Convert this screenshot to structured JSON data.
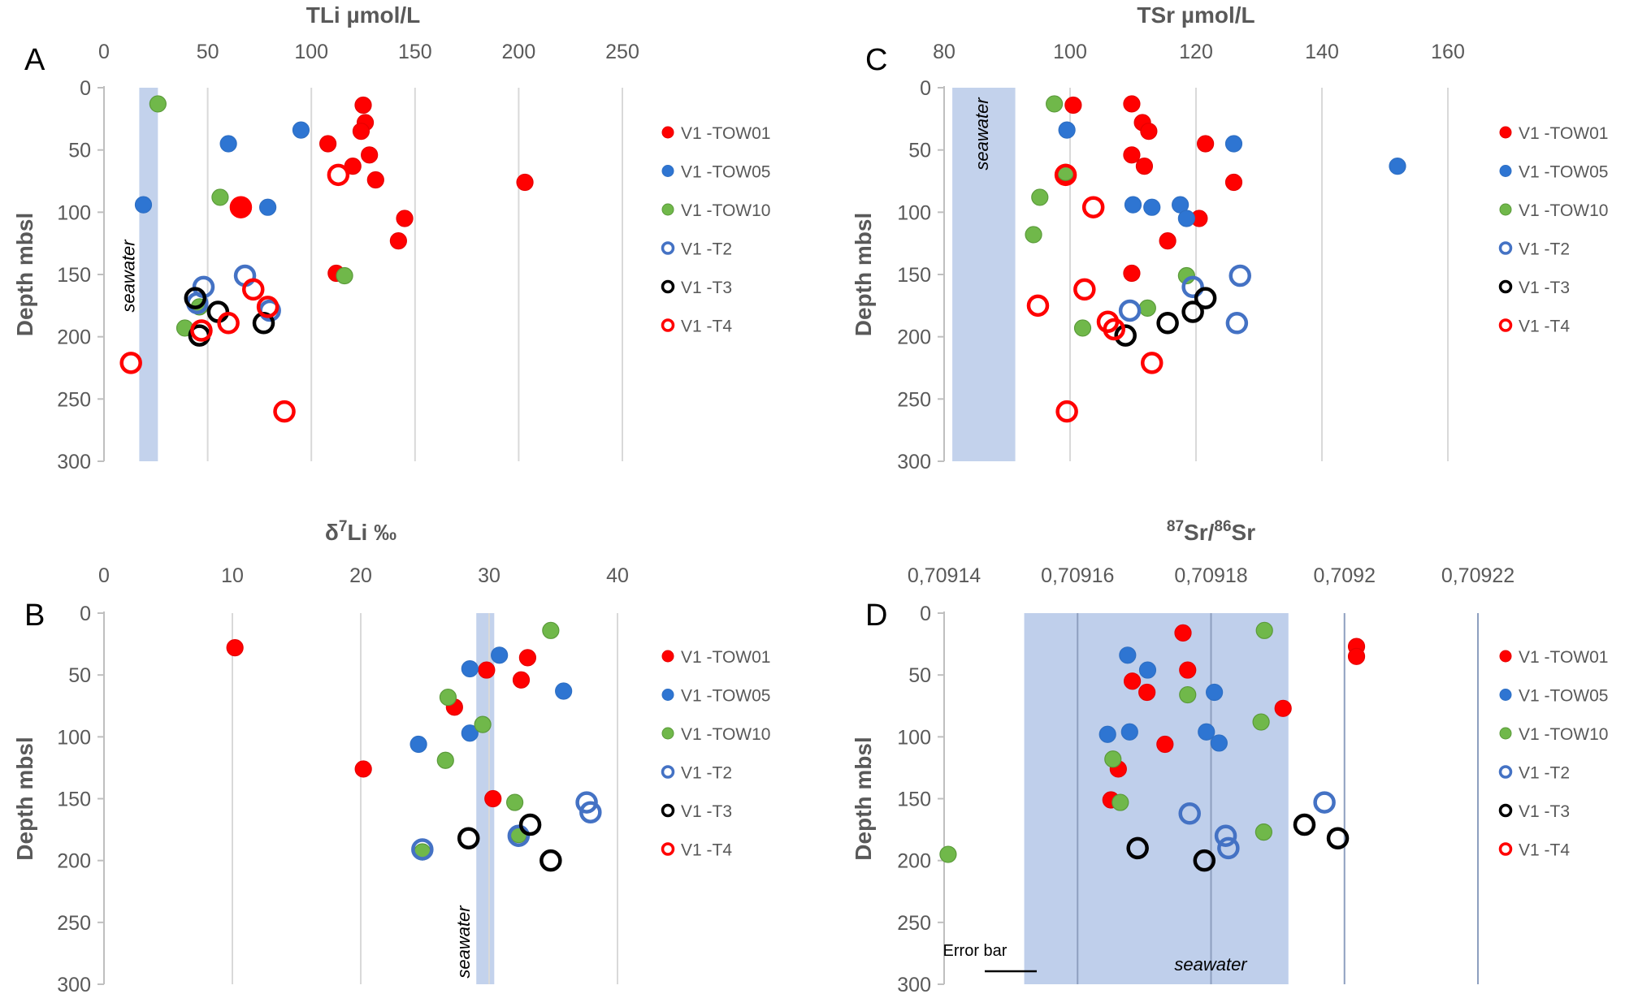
{
  "series_styles": [
    {
      "name": "V1 -TOW01",
      "fill": "#ff0000",
      "stroke": "#e60000",
      "hollow": false
    },
    {
      "name": "V1 -TOW05",
      "fill": "#2e75d2",
      "stroke": "#2e6fc4",
      "hollow": false
    },
    {
      "name": "V1 -TOW10",
      "fill": "#70b84a",
      "stroke": "#5a9a3a",
      "hollow": false
    },
    {
      "name": "V1 -T2",
      "fill": "none",
      "stroke": "#4472c4",
      "hollow": true
    },
    {
      "name": "V1 -T3",
      "fill": "none",
      "stroke": "#000000",
      "hollow": true
    },
    {
      "name": "V1 -T4",
      "fill": "none",
      "stroke": "#ff0000",
      "hollow": true
    }
  ],
  "chart_data": [
    {
      "panel": "A",
      "type": "scatter",
      "title": "TLi µmol/L",
      "xlabel": "TLi µmol/L",
      "ylabel": "Depth mbsl",
      "xlim": [
        0,
        250
      ],
      "ylim": [
        0,
        300
      ],
      "y_inverted": true,
      "xticks": [
        "0",
        "50",
        "100",
        "150",
        "200",
        "250"
      ],
      "yticks": [
        "0",
        "50",
        "100",
        "150",
        "200",
        "250",
        "300"
      ],
      "band": {
        "x": [
          17,
          26
        ],
        "label": "seawater"
      },
      "series": [
        {
          "name": "V1 -TOW01",
          "points": [
            [
              125,
              14
            ],
            [
              126,
              28
            ],
            [
              124,
              35
            ],
            [
              108,
              45
            ],
            [
              128,
              54
            ],
            [
              120,
              63
            ],
            [
              131,
              74
            ],
            [
              203,
              76
            ],
            [
              145,
              105
            ],
            [
              142,
              123
            ],
            [
              112,
              149
            ],
            [
              66,
              96
            ]
          ]
        },
        {
          "name": "V1 -TOW05",
          "points": [
            [
              95,
              34
            ],
            [
              60,
              45
            ],
            [
              19,
              94
            ],
            [
              79,
              96
            ]
          ]
        },
        {
          "name": "V1 -TOW10",
          "points": [
            [
              26,
              13
            ],
            [
              56,
              88
            ],
            [
              46,
              176
            ],
            [
              39,
              193
            ],
            [
              116,
              151
            ]
          ]
        },
        {
          "name": "V1 -T2",
          "points": [
            [
              48,
              160
            ],
            [
              68,
              151
            ],
            [
              80,
              179
            ],
            [
              45,
              173
            ]
          ]
        },
        {
          "name": "V1 -T3",
          "points": [
            [
              44,
              169
            ],
            [
              55,
              180
            ],
            [
              46,
              199
            ],
            [
              77,
              189
            ]
          ]
        },
        {
          "name": "V1 -T4",
          "points": [
            [
              113,
              70
            ],
            [
              66,
              96
            ],
            [
              72,
              162
            ],
            [
              79,
              176
            ],
            [
              60,
              189
            ],
            [
              47,
              195
            ],
            [
              13,
              221
            ],
            [
              87,
              260
            ]
          ]
        }
      ]
    },
    {
      "panel": "C",
      "type": "scatter",
      "title": "TSr µmol/L",
      "xlabel": "TSr µmol/L",
      "ylabel": "Depth mbsl",
      "xlim": [
        80,
        160
      ],
      "ylim": [
        0,
        300
      ],
      "y_inverted": true,
      "xticks": [
        "80",
        "100",
        "120",
        "140",
        "160"
      ],
      "yticks": [
        "0",
        "50",
        "100",
        "150",
        "200",
        "250",
        "300"
      ],
      "band": {
        "x": [
          81.3,
          91.3
        ],
        "label": "seawater"
      },
      "series": [
        {
          "name": "V1 -TOW01",
          "points": [
            [
              100.5,
              14
            ],
            [
              109.8,
              13
            ],
            [
              111.5,
              28
            ],
            [
              112.5,
              35
            ],
            [
              121.5,
              45
            ],
            [
              109.8,
              54
            ],
            [
              111.8,
              63
            ],
            [
              99.2,
              71
            ],
            [
              126,
              76
            ],
            [
              120.5,
              105
            ],
            [
              115.5,
              123
            ],
            [
              109.8,
              149
            ]
          ]
        },
        {
          "name": "V1 -TOW05",
          "points": [
            [
              99.5,
              34
            ],
            [
              126,
              45
            ],
            [
              152,
              63
            ],
            [
              110,
              94
            ],
            [
              113,
              96
            ],
            [
              117.5,
              94
            ],
            [
              118.5,
              105
            ]
          ]
        },
        {
          "name": "V1 -TOW10",
          "points": [
            [
              97.5,
              13
            ],
            [
              99.3,
              68
            ],
            [
              95.2,
              88
            ],
            [
              94.2,
              118
            ],
            [
              118.5,
              151
            ],
            [
              112.3,
              177
            ],
            [
              102,
              193
            ]
          ]
        },
        {
          "name": "V1 -T2",
          "points": [
            [
              119.5,
              160
            ],
            [
              109.5,
              179
            ],
            [
              127,
              151
            ],
            [
              126.5,
              189
            ]
          ]
        },
        {
          "name": "V1 -T3",
          "points": [
            [
              121.5,
              169
            ],
            [
              119.5,
              180
            ],
            [
              115.5,
              189
            ],
            [
              108.8,
              199
            ]
          ]
        },
        {
          "name": "V1 -T4",
          "points": [
            [
              99.3,
              70
            ],
            [
              103.7,
              96
            ],
            [
              102.3,
              162
            ],
            [
              94.9,
              175
            ],
            [
              106,
              188
            ],
            [
              107,
              194
            ],
            [
              113,
              221
            ],
            [
              99.5,
              260
            ]
          ]
        }
      ]
    },
    {
      "panel": "B",
      "type": "scatter",
      "title": "δ7Li ‰",
      "xlabel": "δ7Li ‰",
      "ylabel": "Depth mbsl",
      "xlim": [
        0,
        40
      ],
      "ylim": [
        0,
        300
      ],
      "y_inverted": true,
      "xticks": [
        "0",
        "10",
        "20",
        "30",
        "40"
      ],
      "yticks": [
        "0",
        "50",
        "100",
        "150",
        "200",
        "250",
        "300"
      ],
      "band": {
        "x": [
          29,
          30.4
        ],
        "label": "seawater"
      },
      "series": [
        {
          "name": "V1 -TOW01",
          "points": [
            [
              10.2,
              28
            ],
            [
              33,
              36
            ],
            [
              29.8,
              46
            ],
            [
              32.5,
              54
            ],
            [
              27.3,
              76
            ],
            [
              20.2,
              126
            ],
            [
              30.3,
              150
            ]
          ]
        },
        {
          "name": "V1 -TOW05",
          "points": [
            [
              30.8,
              34
            ],
            [
              28.5,
              45
            ],
            [
              35.8,
              63
            ],
            [
              24.5,
              106
            ],
            [
              28.5,
              97
            ]
          ]
        },
        {
          "name": "V1 -TOW10",
          "points": [
            [
              34.8,
              14
            ],
            [
              26.8,
              68
            ],
            [
              29.5,
              90
            ],
            [
              26.6,
              119
            ],
            [
              32,
              153
            ],
            [
              32.3,
              179
            ],
            [
              24.8,
              193
            ]
          ]
        },
        {
          "name": "V1 -T2",
          "points": [
            [
              37.6,
              153
            ],
            [
              37.9,
              161
            ],
            [
              32.3,
              180
            ],
            [
              24.8,
              191
            ]
          ]
        },
        {
          "name": "V1 -T3",
          "points": [
            [
              33.2,
              171
            ],
            [
              28.4,
              182
            ],
            [
              34.8,
              200
            ]
          ]
        },
        {
          "name": "V1 -T4",
          "points": []
        }
      ]
    },
    {
      "panel": "D",
      "type": "scatter",
      "title": "87Sr/86Sr",
      "xlabel": "87Sr/86Sr",
      "ylabel": "Depth mbsl",
      "xlim": [
        0.70914,
        0.70922
      ],
      "ylim": [
        0,
        300
      ],
      "y_inverted": true,
      "xticks": [
        "0,70914",
        "0,70916",
        "0,70918",
        "0,7092",
        "0,70922"
      ],
      "yticks": [
        "0",
        "50",
        "100",
        "150",
        "200",
        "250",
        "300"
      ],
      "band": {
        "x": [
          0.709152,
          0.7091916
        ],
        "label": "seawater"
      },
      "error_bar_label": "Error bar",
      "series": [
        {
          "name": "V1 -TOW01",
          "points": [
            [
              0.7091758,
              16
            ],
            [
              0.7092018,
              27
            ],
            [
              0.7092018,
              35
            ],
            [
              0.7091765,
              46
            ],
            [
              0.7091682,
              55
            ],
            [
              0.7091704,
              64
            ],
            [
              0.7091908,
              77
            ],
            [
              0.7091731,
              106
            ],
            [
              0.7091661,
              126
            ],
            [
              0.709165,
              151
            ]
          ]
        },
        {
          "name": "V1 -TOW05",
          "points": [
            [
              0.7091675,
              34
            ],
            [
              0.7091705,
              46
            ],
            [
              0.7091805,
              64
            ],
            [
              0.7091678,
              96
            ],
            [
              0.7091793,
              96
            ],
            [
              0.7091645,
              98
            ],
            [
              0.7091812,
              105
            ]
          ]
        },
        {
          "name": "V1 -TOW10",
          "points": [
            [
              0.709188,
              14
            ],
            [
              0.7091765,
              66
            ],
            [
              0.7091875,
              88
            ],
            [
              0.7091653,
              118
            ],
            [
              0.7091664,
              153
            ],
            [
              0.7091879,
              177
            ],
            [
              0.7091406,
              195
            ]
          ]
        },
        {
          "name": "V1 -T2",
          "points": [
            [
              0.709197,
              153
            ],
            [
              0.7091768,
              162
            ],
            [
              0.7091822,
              180
            ],
            [
              0.7091826,
              190
            ]
          ]
        },
        {
          "name": "V1 -T3",
          "points": [
            [
              0.709194,
              171
            ],
            [
              0.709199,
              182
            ],
            [
              0.709169,
              190
            ],
            [
              0.709179,
              200
            ]
          ]
        },
        {
          "name": "V1 -T4",
          "points": []
        }
      ]
    }
  ]
}
